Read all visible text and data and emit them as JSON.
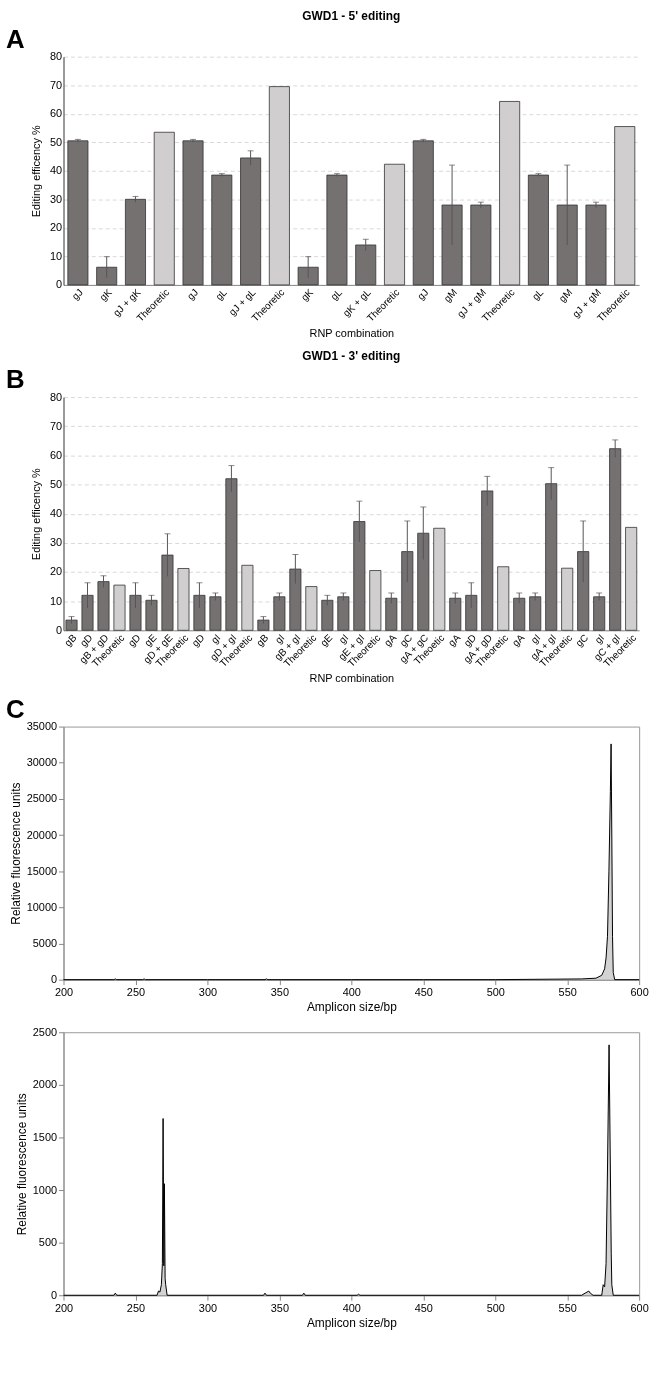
{
  "chart_data": [
    {
      "type": "bar",
      "title": "GWD1 - 5' editing",
      "xlabel": "RNP combination",
      "ylabel": "Editing efficency %",
      "annotations": [
        "A"
      ],
      "grid": "y",
      "ylim": [
        0,
        80
      ],
      "yticks": [
        0,
        10,
        20,
        30,
        40,
        50,
        60,
        70,
        80
      ],
      "categories": [
        "gJ",
        "gK",
        "gJ + gK",
        "Theoretic",
        "gJ",
        "gL",
        "gJ + gL",
        "Theoretic",
        "gK",
        "gL",
        "gK + gL",
        "Theoretic",
        "gJ",
        "gM",
        "gJ + gM",
        "Theoretic",
        "gL",
        "gM",
        "gJ + gM",
        "Theoretic"
      ],
      "values": [
        50.5,
        6.2,
        30,
        53.5,
        50.5,
        38.5,
        44.5,
        69.5,
        6.2,
        38.5,
        14,
        42.3,
        50.5,
        28,
        28,
        64.3,
        38.5,
        28,
        28,
        55.5
      ],
      "errors": [
        0.5,
        3.7,
        1,
        null,
        0.5,
        0.5,
        2.5,
        null,
        3.7,
        0.5,
        2,
        null,
        0.5,
        14,
        1,
        null,
        0.5,
        14,
        1,
        null
      ],
      "colors": [
        "#767171",
        "#767171",
        "#767171",
        "#d0cece",
        "#767171",
        "#767171",
        "#767171",
        "#d0cece",
        "#767171",
        "#767171",
        "#767171",
        "#d0cece",
        "#767171",
        "#767171",
        "#767171",
        "#d0cece",
        "#767171",
        "#767171",
        "#767171",
        "#d0cece"
      ]
    },
    {
      "type": "bar",
      "title": "GWD1 - 3' editing",
      "xlabel": "RNP combination",
      "ylabel": "Editing efficency %",
      "annotations": [
        "B"
      ],
      "grid": "y",
      "ylim": [
        0,
        80
      ],
      "yticks": [
        0,
        10,
        20,
        30,
        40,
        50,
        60,
        70,
        80
      ],
      "categories": [
        "gB",
        "gD",
        "gB + gD",
        "Theoretic",
        "gD",
        "gE",
        "gD + gE",
        "Theoretic",
        "gD",
        "gI",
        "gD + gI",
        "Theoretic",
        "gB",
        "gI",
        "gB + gI",
        "Theoretic",
        "gE",
        "gI",
        "gE + gI",
        "Theoretic",
        "gA",
        "gC",
        "gA + gC",
        "Theoetic",
        "gA",
        "gD",
        "gA + gD",
        "Theoretic",
        "gA",
        "gI",
        "gA + gI",
        "Theoretic",
        "gC",
        "gI",
        "gC + gI",
        "Theoretic"
      ],
      "values": [
        3.5,
        12,
        16.7,
        15.5,
        12,
        10.3,
        25.8,
        21.2,
        12,
        11.5,
        52,
        22.3,
        3.5,
        11.5,
        21,
        15,
        10.3,
        11.5,
        37.3,
        20.5,
        11,
        27,
        33.3,
        35,
        11,
        12,
        47.8,
        21.8,
        11,
        11.5,
        50.3,
        21.3,
        27,
        11.5,
        62.3,
        35.3
      ],
      "errors": [
        1.2,
        4.3,
        2,
        null,
        4.3,
        1.7,
        7.3,
        null,
        4.3,
        1.3,
        4.5,
        null,
        1.2,
        1.3,
        5,
        null,
        1.7,
        1.3,
        7,
        null,
        1.8,
        10.5,
        9,
        null,
        1.8,
        4.3,
        5,
        null,
        1.8,
        1.3,
        5.5,
        null,
        10.5,
        1.3,
        3,
        null
      ],
      "colors": [
        "#767171",
        "#767171",
        "#767171",
        "#d0cece",
        "#767171",
        "#767171",
        "#767171",
        "#d0cece",
        "#767171",
        "#767171",
        "#767171",
        "#d0cece",
        "#767171",
        "#767171",
        "#767171",
        "#d0cece",
        "#767171",
        "#767171",
        "#767171",
        "#d0cece",
        "#767171",
        "#767171",
        "#767171",
        "#d0cece",
        "#767171",
        "#767171",
        "#767171",
        "#d0cece",
        "#767171",
        "#767171",
        "#767171",
        "#d0cece",
        "#767171",
        "#767171",
        "#767171",
        "#d0cece"
      ]
    },
    {
      "type": "area",
      "xlabel": "Amplicon size/bp",
      "ylabel": "Relative fluorescence units",
      "annotations": [
        "C"
      ],
      "color": "#c0c0c0",
      "xlim": [
        200,
        600
      ],
      "xticks": [
        200,
        250,
        300,
        350,
        400,
        450,
        500,
        550,
        600
      ],
      "ylim": [
        0,
        35000
      ],
      "yticks": [
        0,
        5000,
        10000,
        15000,
        20000,
        25000,
        30000,
        35000
      ],
      "x": [
        200,
        235,
        236,
        237,
        255,
        256,
        257,
        300,
        340,
        341,
        342,
        400,
        450,
        500,
        560,
        570,
        574,
        576,
        577,
        578,
        579,
        580,
        580.5,
        581,
        581.5,
        582,
        583,
        600
      ],
      "values": [
        0,
        0,
        100,
        0,
        0,
        100,
        0,
        0,
        0,
        100,
        0,
        0,
        0,
        0,
        100,
        200,
        600,
        1500,
        3000,
        6000,
        15000,
        26000,
        32600,
        20000,
        6000,
        1000,
        0,
        0
      ]
    },
    {
      "type": "area",
      "xlabel": "Amplicon size/bp",
      "ylabel": "Relative fluorescence units",
      "color": "#c0c0c0",
      "xlim": [
        200,
        600
      ],
      "xticks": [
        200,
        250,
        300,
        350,
        400,
        450,
        500,
        550,
        600
      ],
      "ylim": [
        0,
        2500
      ],
      "yticks": [
        0,
        500,
        1000,
        1500,
        2000,
        2500
      ],
      "x": [
        200,
        235,
        236,
        237,
        265,
        266,
        267,
        268,
        268.7,
        269.2,
        269.7,
        270.1,
        270.6,
        271,
        272,
        339,
        340,
        341,
        366,
        367,
        368,
        404,
        405,
        406,
        560,
        565,
        566,
        568,
        574,
        575,
        576,
        577,
        578,
        579.1,
        580,
        580.6,
        581,
        582,
        600
      ],
      "values": [
        0,
        0,
        20,
        0,
        0,
        40,
        30,
        100,
        300,
        1680,
        280,
        1060,
        160,
        100,
        0,
        0,
        20,
        0,
        0,
        20,
        0,
        0,
        10,
        0,
        0,
        40,
        20,
        0,
        0,
        100,
        80,
        300,
        1200,
        2380,
        1200,
        400,
        100,
        0,
        0
      ]
    }
  ]
}
